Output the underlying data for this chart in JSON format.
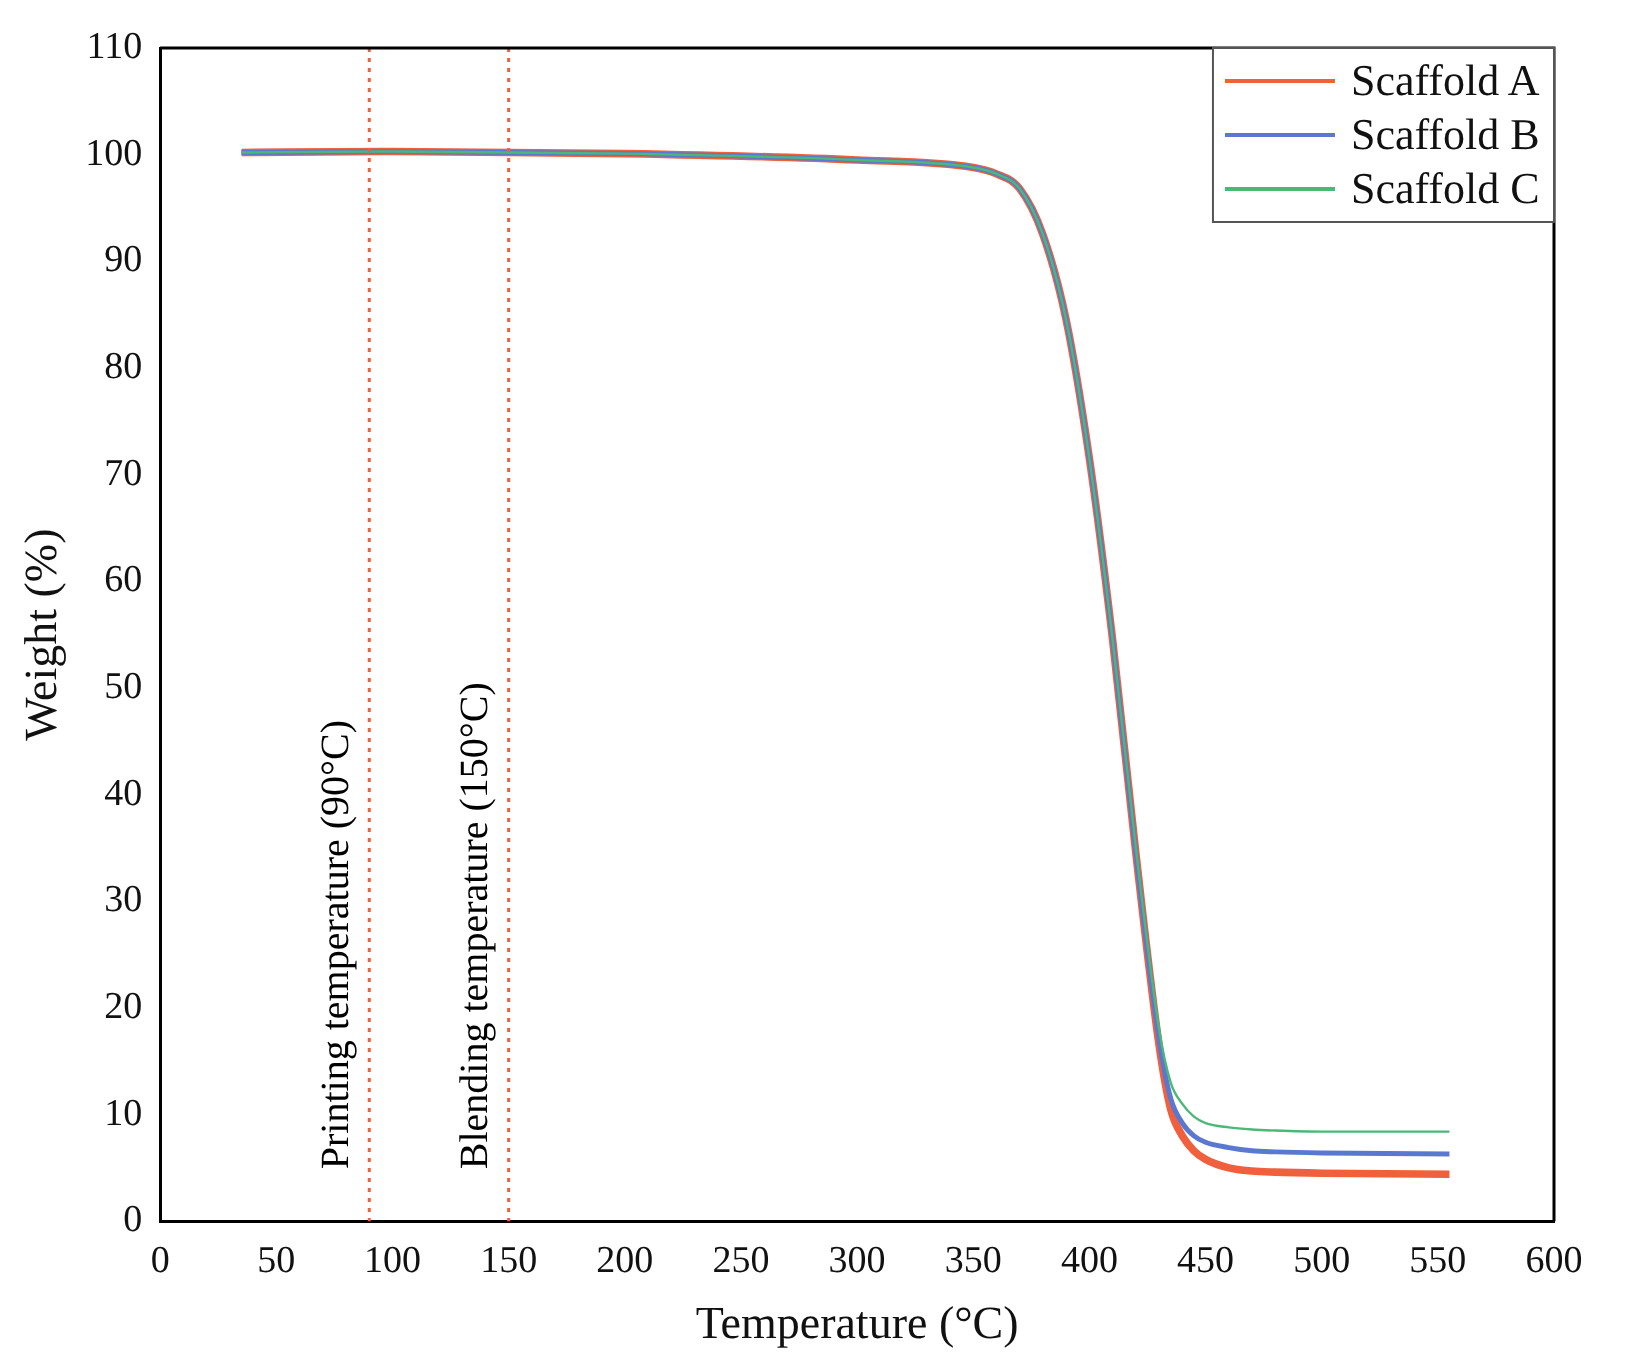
{
  "chart_data": {
    "type": "line",
    "xlabel": "Temperature (°C)",
    "ylabel": "Weight (%)",
    "x": [
      35,
      100,
      200,
      300,
      350,
      360,
      370,
      380,
      390,
      400,
      410,
      420,
      430,
      435,
      440,
      445,
      450,
      460,
      470,
      480,
      500,
      555
    ],
    "series": [
      {
        "name": "Scaffold A",
        "color": "#f0603c",
        "values": [
          100.2,
          100.3,
          100.1,
          99.5,
          98.8,
          98.2,
          96.8,
          92.5,
          84.5,
          71.5,
          54.5,
          34.5,
          16.5,
          10.5,
          8,
          6.6,
          5.8,
          5,
          4.7,
          4.6,
          4.5,
          4.4
        ]
      },
      {
        "name": "Scaffold B",
        "color": "#5a78d0",
        "values": [
          100.2,
          100.3,
          100.1,
          99.5,
          98.8,
          98.2,
          96.8,
          92.5,
          84.5,
          71.5,
          54.5,
          34.5,
          17,
          11.5,
          9.2,
          8,
          7.4,
          6.9,
          6.6,
          6.5,
          6.4,
          6.3
        ]
      },
      {
        "name": "Scaffold C",
        "color": "#4cb878",
        "values": [
          100.2,
          100.3,
          100.1,
          99.5,
          98.8,
          98.2,
          96.8,
          92.5,
          84.5,
          71.5,
          54.5,
          35,
          18,
          13,
          11,
          9.8,
          9.2,
          8.8,
          8.6,
          8.5,
          8.4,
          8.4
        ]
      }
    ],
    "xlim": [
      0,
      600
    ],
    "xticks": [
      0,
      50,
      100,
      150,
      200,
      250,
      300,
      350,
      400,
      450,
      500,
      550,
      600
    ],
    "ylim": [
      0,
      110
    ],
    "yticks": [
      0,
      10,
      20,
      30,
      40,
      50,
      60,
      70,
      80,
      90,
      100,
      110
    ],
    "ref_lines": [
      {
        "axis": "x",
        "value": 90,
        "label": "Printing temperature (90°C)",
        "color": "#f0603c",
        "line_style": "dotted"
      },
      {
        "axis": "x",
        "value": 150,
        "label": "Blending temperature (150°C)",
        "color": "#f0603c",
        "line_style": "dotted"
      }
    ],
    "grid": false,
    "legend": "top right",
    "marker": "none",
    "line_style": "solid"
  }
}
